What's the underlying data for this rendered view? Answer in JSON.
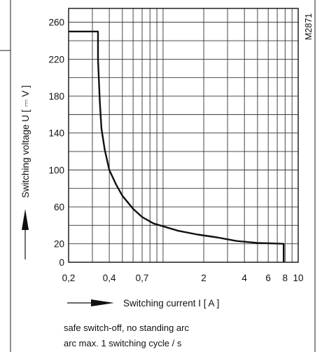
{
  "chart_data": {
    "type": "line",
    "ylabel": "Switching voltage   U   [ ⎓ V ]",
    "xlabel": "Switching current   I   [ A ]",
    "figure_id": "M2871",
    "x_scale": "log",
    "xlim": [
      0.2,
      10
    ],
    "ylim": [
      0,
      275
    ],
    "x_ticks": [
      0.2,
      0.4,
      0.7,
      2,
      4,
      6,
      8,
      10
    ],
    "x_tick_labels": [
      "0,2",
      "0,4",
      "0,7",
      "2",
      "4",
      "6",
      "8",
      "10"
    ],
    "y_ticks": [
      0,
      20,
      60,
      100,
      140,
      180,
      220,
      260
    ],
    "y_tick_labels": [
      "0",
      "20",
      "60",
      "100",
      "140",
      "180",
      "220",
      "260"
    ],
    "grid": true,
    "series": [
      {
        "x": [
          0.2,
          0.33,
          0.33,
          0.34,
          0.35,
          0.37,
          0.4,
          0.45,
          0.5,
          0.6,
          0.7,
          0.85,
          1.0,
          1.3,
          1.8,
          2.5,
          3.5,
          5.0,
          7.8,
          7.8
        ],
        "y": [
          250,
          250,
          220,
          175,
          145,
          122,
          100,
          84,
          72,
          58,
          49,
          42,
          39,
          34,
          30,
          27,
          23,
          21,
          20,
          0
        ]
      }
    ],
    "notes": [
      "safe switch-off, no standing arc",
      "arc max.  1 switching cycle  /  s"
    ]
  }
}
